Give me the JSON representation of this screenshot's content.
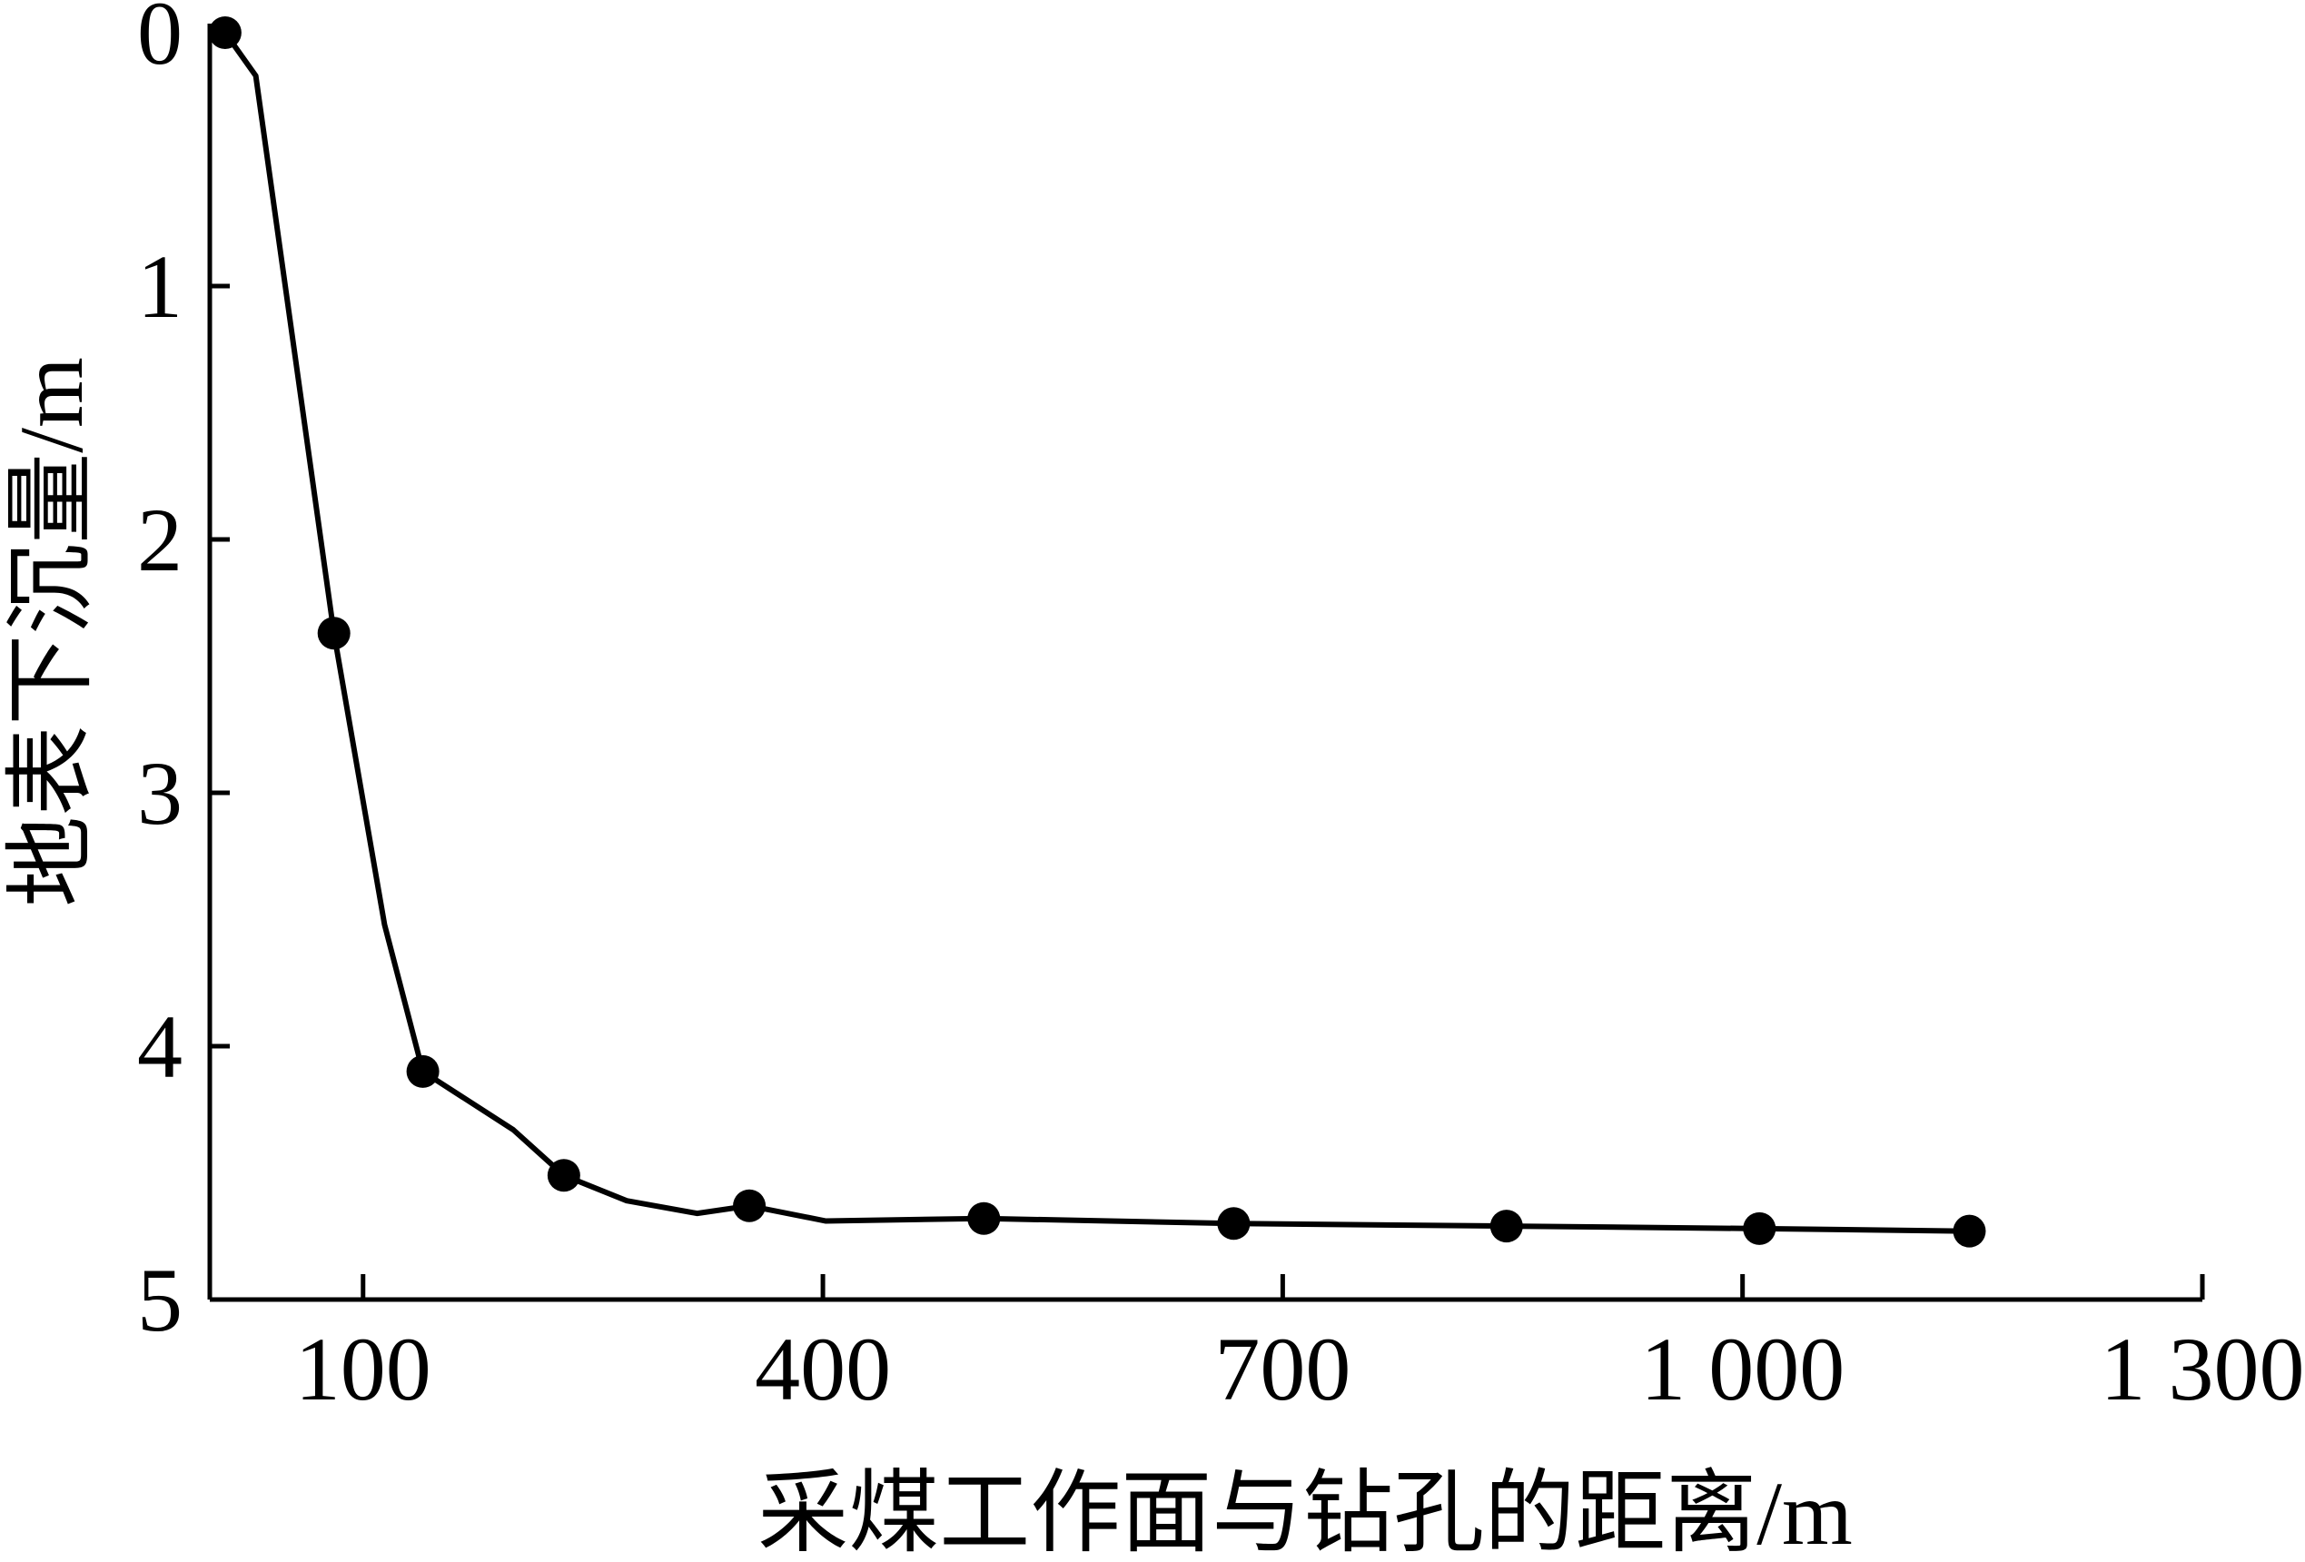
{
  "chart_data": {
    "type": "line",
    "xlabel": "采煤工作面与钻孔的距离/m",
    "ylabel": "地表下沉量/m",
    "xlim": [
      0,
      1300
    ],
    "xticks": [
      100,
      400,
      700,
      {
        "value": 1000,
        "label": "1 000"
      },
      {
        "value": 1300,
        "label": "1 300"
      }
    ],
    "ylim": [
      0,
      5
    ],
    "yticks": [
      0,
      1,
      2,
      3,
      4,
      5
    ],
    "y_inverted": true,
    "series": [
      {
        "color": "#000000",
        "marker": false,
        "x": [
          10,
          30,
          81,
          114,
          139,
          198,
          231,
          272,
          318,
          352,
          402,
          505,
          668,
          846,
          1011,
          1148
        ],
        "values": [
          0,
          0.17,
          2.37,
          3.52,
          4.1,
          4.33,
          4.51,
          4.61,
          4.66,
          4.63,
          4.69,
          4.68,
          4.7,
          4.71,
          4.72,
          4.73
        ]
      },
      {
        "color": "#000000",
        "marker": true,
        "line": false,
        "x": [
          10,
          81,
          139,
          231,
          352,
          505,
          668,
          846,
          1011,
          1148
        ],
        "values": [
          0,
          2.37,
          4.1,
          4.51,
          4.63,
          4.68,
          4.7,
          4.71,
          4.72,
          4.73
        ]
      }
    ]
  }
}
